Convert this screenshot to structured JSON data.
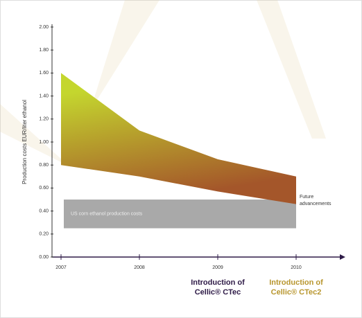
{
  "chart_data": {
    "type": "range_area",
    "y_label": "Production costs EUR/liter ethanol",
    "categories": [
      "2007",
      "2008",
      "2009",
      "2010"
    ],
    "series": [
      {
        "values": [
          1.6,
          1.1,
          0.85,
          0.7
        ]
      },
      {
        "values": [
          0.8,
          0.7,
          0.57,
          0.46
        ]
      }
    ],
    "fill_colors": [
      "#c4d62e",
      "#a4562a"
    ],
    "ylim": [
      0,
      2
    ],
    "yticks": [
      {
        "value": 0,
        "label": "0.00"
      },
      {
        "value": 0.2,
        "label": "0.20"
      },
      {
        "value": 0.4,
        "label": "0.40"
      },
      {
        "value": 0.6,
        "label": "0.60"
      },
      {
        "value": 0.8,
        "label": "0.80"
      },
      {
        "value": 1,
        "label": "1.00"
      },
      {
        "value": 1.2,
        "label": "1.20"
      },
      {
        "value": 1.4,
        "label": "1.40"
      },
      {
        "value": 1.6,
        "label": "1.60"
      },
      {
        "value": 1.8,
        "label": "1.80"
      },
      {
        "value": 2,
        "label": "2.00"
      }
    ],
    "reference_band": {
      "label": "US corn ethanol production costs",
      "range": [
        0.25,
        0.5
      ],
      "color": "#a9a9a9"
    },
    "annotations": [
      {
        "lines": [
          "Future",
          "advancements"
        ],
        "color": "#333333"
      },
      {
        "lines": [
          "Introduction of",
          "Cellic® CTec"
        ],
        "color": "#2e1a47"
      },
      {
        "lines": [
          "Introduction of",
          "Cellic® CTec2"
        ],
        "color": "#b8962e"
      }
    ]
  }
}
